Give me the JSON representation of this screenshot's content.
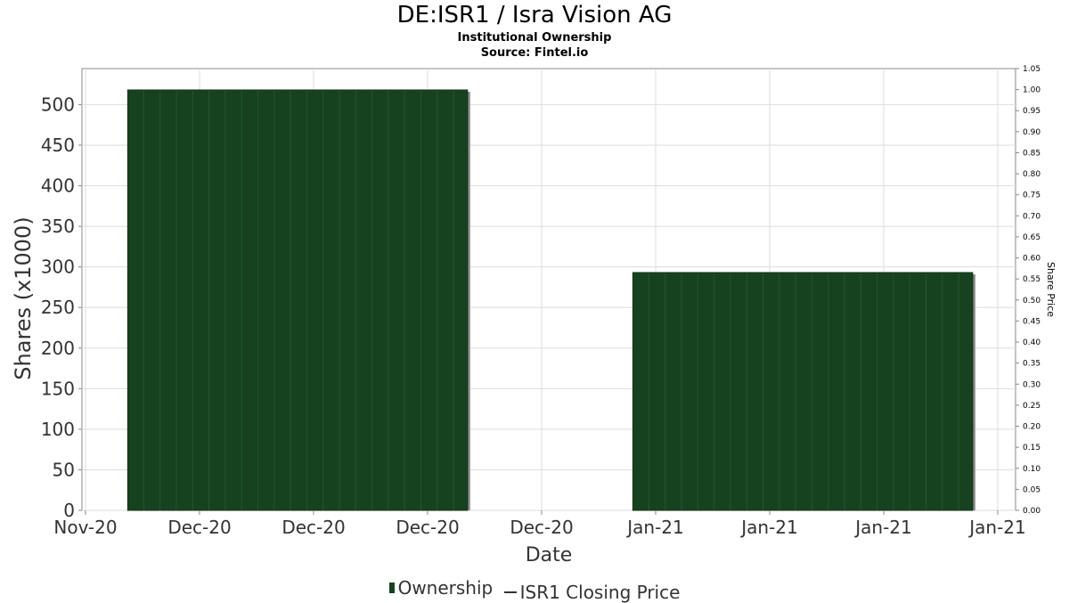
{
  "title": "DE:ISR1 / Isra Vision AG",
  "subtitle": "Institutional Ownership",
  "source": "Source: Fintel.io",
  "colors": {
    "bar": "#17421f",
    "bar_edge": "#888888",
    "grid": "#dddddd",
    "axis": "#888888"
  },
  "chart_data": {
    "type": "bar",
    "title": "DE:ISR1 / Isra Vision AG",
    "xlabel": "Date",
    "ylabel": "Shares (x1000)",
    "y2label": "Share Price",
    "ylim": [
      0,
      520
    ],
    "y2lim": [
      0,
      1.05
    ],
    "yticks": [
      0,
      50,
      100,
      150,
      200,
      250,
      300,
      350,
      400,
      450,
      500
    ],
    "y2ticks": [
      "0.00",
      "0.05",
      "0.10",
      "0.15",
      "0.20",
      "0.25",
      "0.30",
      "0.35",
      "0.40",
      "0.45",
      "0.50",
      "0.55",
      "0.60",
      "0.65",
      "0.70",
      "0.75",
      "0.80",
      "0.85",
      "0.90",
      "0.95",
      "1.00",
      "1.05"
    ],
    "xticks": [
      "Nov-20",
      "Dec-20",
      "Dec-20",
      "Dec-20",
      "Dec-20",
      "Jan-21",
      "Jan-21",
      "Jan-21",
      "Jan-21"
    ],
    "grid": true,
    "legend_position": "bottom",
    "series": [
      {
        "name": "Ownership",
        "type": "bar",
        "segments": [
          {
            "from_tick": 0.37,
            "to_tick": 3.35,
            "value": 518
          },
          {
            "from_tick": 4.8,
            "to_tick": 7.78,
            "value": 293
          }
        ]
      },
      {
        "name": "ISR1 Closing Price",
        "type": "line",
        "values": []
      }
    ]
  }
}
